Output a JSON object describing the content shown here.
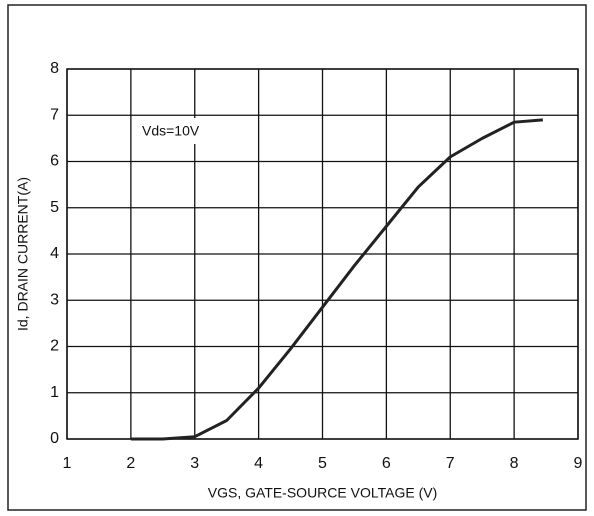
{
  "chart_data": {
    "type": "line",
    "x": [
      2,
      2.5,
      3,
      3.5,
      4,
      4.5,
      5,
      5.5,
      6,
      6.5,
      7,
      7.5,
      8,
      8.45
    ],
    "series": [
      {
        "name": "Id",
        "color": "#222222",
        "values": [
          0,
          0,
          0.05,
          0.4,
          1.1,
          1.95,
          2.85,
          3.75,
          4.6,
          5.45,
          6.1,
          6.5,
          6.85,
          6.9
        ]
      }
    ],
    "xlabel": "VGS, GATE-SOURCE VOLTAGE (V)",
    "ylabel": "Id, DRAIN CURRENT(A)",
    "annotation": "Vds=10V",
    "xlim": [
      1,
      9
    ],
    "ylim": [
      0,
      8
    ],
    "xticks": [
      1,
      2,
      3,
      4,
      5,
      6,
      7,
      8,
      9
    ],
    "yticks": [
      0,
      1,
      2,
      3,
      4,
      5,
      6,
      7,
      8
    ],
    "grid": true
  }
}
